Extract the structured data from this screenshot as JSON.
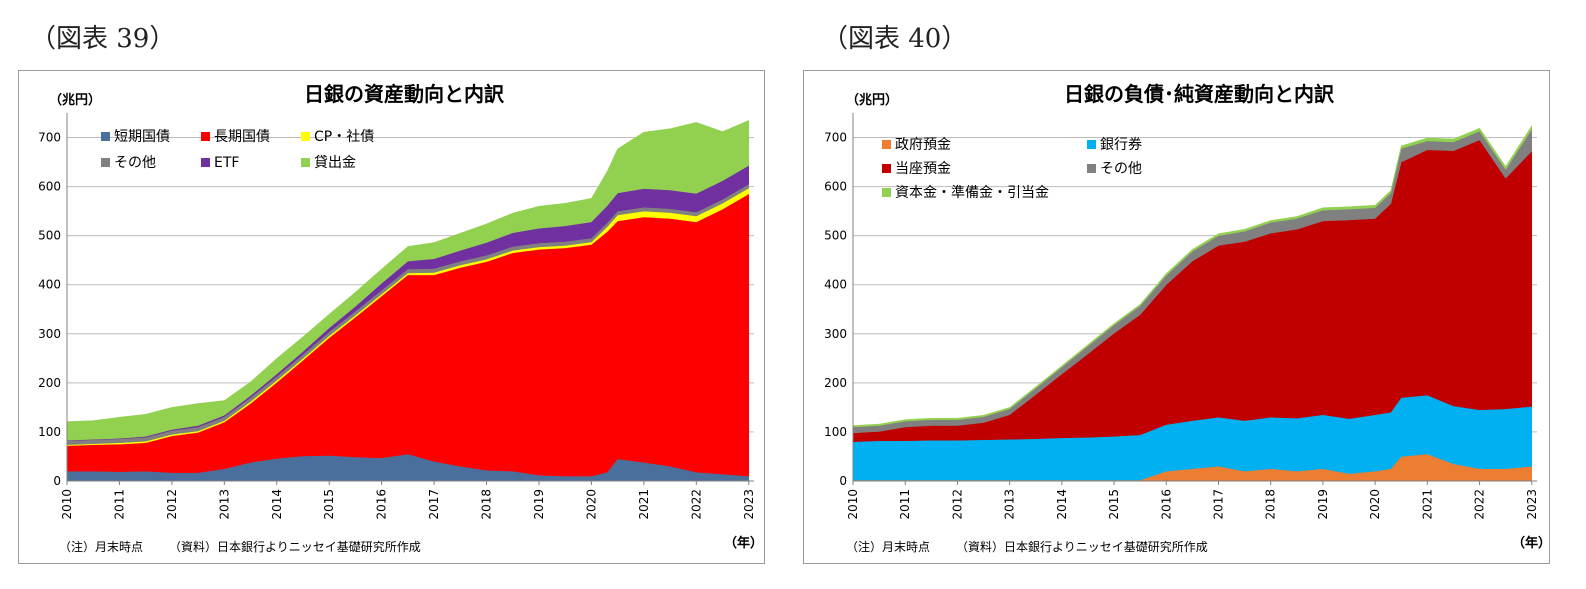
{
  "figures": [
    {
      "label": "（図表 39）"
    },
    {
      "label": "（図表 40）"
    }
  ],
  "chart_data": [
    {
      "type": "area",
      "stacked": true,
      "title": "日銀の資産動向と内訳",
      "ylabel": "（兆円）",
      "xlabel": "（年）",
      "ylim": [
        0,
        750
      ],
      "yticks": [
        0,
        100,
        200,
        300,
        400,
        500,
        600,
        700
      ],
      "xticks": [
        "2010",
        "2011",
        "2012",
        "2013",
        "2014",
        "2015",
        "2016",
        "2017",
        "2018",
        "2019",
        "2020",
        "2021",
        "2022",
        "2023"
      ],
      "legend": "top-left",
      "x": [
        2010.0,
        2010.5,
        2011.0,
        2011.5,
        2012.0,
        2012.5,
        2013.0,
        2013.5,
        2014.0,
        2014.5,
        2015.0,
        2015.5,
        2016.0,
        2016.5,
        2017.0,
        2017.5,
        2018.0,
        2018.5,
        2019.0,
        2019.5,
        2020.0,
        2020.3,
        2020.5,
        2021.0,
        2021.5,
        2022.0,
        2022.5,
        2023.0
      ],
      "series": [
        {
          "name": "短期国債",
          "color": "#4a6f9c",
          "values": [
            20,
            20,
            19,
            20,
            17,
            17,
            25,
            38,
            46,
            51,
            52,
            49,
            47,
            55,
            40,
            30,
            22,
            20,
            12,
            10,
            10,
            18,
            45,
            38,
            30,
            18,
            14,
            10
          ]
        },
        {
          "name": "長期国債",
          "color": "#ff0000",
          "values": [
            52,
            54,
            56,
            58,
            75,
            82,
            95,
            120,
            155,
            195,
            240,
            285,
            330,
            365,
            380,
            405,
            425,
            445,
            460,
            465,
            472,
            490,
            485,
            500,
            505,
            510,
            540,
            575
          ]
        },
        {
          "name": "CP・社債",
          "color": "#ffff00",
          "values": [
            2,
            2,
            3,
            3,
            3,
            3,
            3,
            4,
            4,
            4,
            4,
            4,
            4,
            4,
            5,
            5,
            5,
            5,
            5,
            5,
            5,
            10,
            12,
            12,
            12,
            12,
            12,
            12
          ]
        },
        {
          "name": "その他",
          "color": "#808080",
          "values": [
            8,
            8,
            8,
            8,
            8,
            8,
            8,
            8,
            8,
            8,
            8,
            8,
            8,
            8,
            8,
            8,
            8,
            8,
            8,
            8,
            8,
            8,
            8,
            8,
            8,
            8,
            8,
            8
          ]
        },
        {
          "name": "ETF",
          "color": "#7030a0",
          "values": [
            1,
            1,
            1,
            2,
            2,
            3,
            3,
            4,
            5,
            6,
            8,
            10,
            14,
            16,
            20,
            22,
            26,
            28,
            30,
            32,
            33,
            35,
            37,
            38,
            38,
            38,
            38,
            38
          ]
        },
        {
          "name": "貸出金",
          "color": "#92d050",
          "values": [
            38,
            38,
            43,
            45,
            45,
            45,
            30,
            28,
            32,
            30,
            28,
            29,
            29,
            30,
            33,
            35,
            38,
            40,
            45,
            46,
            48,
            70,
            90,
            115,
            125,
            145,
            100,
            92
          ]
        }
      ]
    },
    {
      "type": "area",
      "stacked": true,
      "title": "日銀の負債･純資産動向と内訳",
      "ylabel": "（兆円）",
      "xlabel": "（年）",
      "ylim": [
        0,
        750
      ],
      "yticks": [
        0,
        100,
        200,
        300,
        400,
        500,
        600,
        700
      ],
      "xticks": [
        "2010",
        "2011",
        "2012",
        "2013",
        "2014",
        "2015",
        "2016",
        "2017",
        "2018",
        "2019",
        "2020",
        "2021",
        "2022",
        "2023"
      ],
      "legend": "top-left",
      "x": [
        2010.0,
        2010.5,
        2011.0,
        2011.5,
        2012.0,
        2012.5,
        2013.0,
        2013.5,
        2014.0,
        2014.5,
        2015.0,
        2015.5,
        2016.0,
        2016.5,
        2017.0,
        2017.5,
        2018.0,
        2018.5,
        2019.0,
        2019.5,
        2020.0,
        2020.3,
        2020.5,
        2021.0,
        2021.5,
        2022.0,
        2022.5,
        2023.0
      ],
      "series": [
        {
          "name": "政府預金",
          "color": "#ed7d31",
          "values": [
            2,
            2,
            2,
            2,
            2,
            2,
            2,
            2,
            2,
            2,
            2,
            2,
            20,
            25,
            30,
            20,
            25,
            20,
            25,
            15,
            20,
            25,
            50,
            55,
            35,
            25,
            25,
            30
          ]
        },
        {
          "name": "銀行券",
          "color": "#00b0f0",
          "values": [
            78,
            80,
            80,
            81,
            81,
            82,
            83,
            84,
            86,
            87,
            89,
            92,
            95,
            98,
            100,
            103,
            105,
            108,
            110,
            112,
            115,
            115,
            120,
            120,
            118,
            120,
            122,
            122
          ]
        },
        {
          "name": "当座預金",
          "color": "#c00000",
          "values": [
            18,
            19,
            28,
            30,
            30,
            35,
            50,
            90,
            130,
            170,
            210,
            245,
            285,
            325,
            350,
            365,
            375,
            385,
            395,
            405,
            400,
            425,
            480,
            500,
            520,
            550,
            470,
            520
          ]
        },
        {
          "name": "その他",
          "color": "#808080",
          "values": [
            12,
            12,
            12,
            12,
            12,
            12,
            12,
            13,
            14,
            16,
            17,
            18,
            19,
            20,
            20,
            21,
            22,
            22,
            22,
            22,
            22,
            22,
            28,
            18,
            18,
            18,
            18,
            45
          ]
        },
        {
          "name": "資本金・準備金・引当金",
          "color": "#92d050",
          "values": [
            3,
            3,
            3,
            3,
            3,
            3,
            3,
            3,
            3,
            3,
            3,
            3,
            4,
            4,
            4,
            4,
            4,
            4,
            5,
            5,
            5,
            5,
            5,
            6,
            6,
            6,
            6,
            7
          ]
        }
      ]
    }
  ],
  "notes": [
    {
      "note": "（注）月末時点",
      "source": "（資料）日本銀行よりニッセイ基礎研究所作成"
    },
    {
      "note": "（注）月末時点",
      "source": "（資料）日本銀行よりニッセイ基礎研究所作成"
    }
  ]
}
